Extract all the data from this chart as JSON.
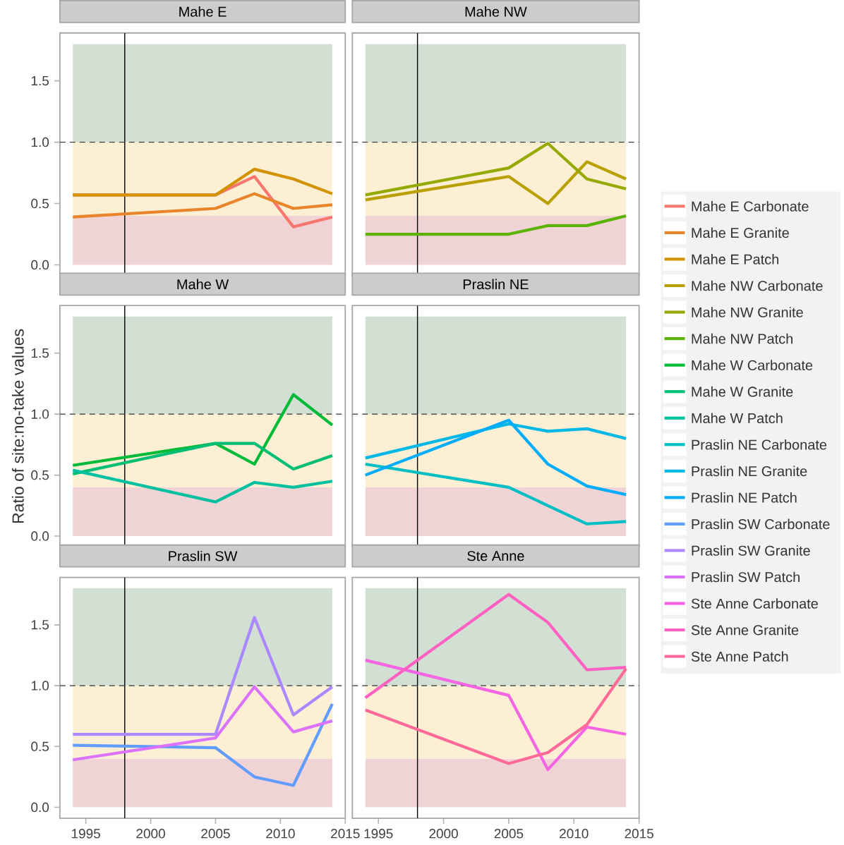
{
  "chart_data": [
    {
      "type": "line",
      "title": "Mahe E",
      "x": [
        1994,
        2005,
        2008,
        2011,
        2014
      ],
      "legend": "right",
      "tick_labels": "y",
      "xlim": [
        1993,
        2015
      ],
      "ylim": [
        -0.09,
        1.89
      ],
      "yticks": [
        {
          "value": 0,
          "label": "0.0"
        },
        {
          "value": 0.5,
          "label": "0.5"
        },
        {
          "value": 1,
          "label": "1.0"
        },
        {
          "value": 1.5,
          "label": "1.5"
        }
      ],
      "ref_lines": [
        {
          "axis": "x",
          "value": 1998,
          "color": "#000000",
          "line_style": "solid"
        },
        {
          "axis": "y",
          "value": 1,
          "color": "#333333",
          "line_style": "dashed"
        }
      ],
      "bands": [
        {
          "axis": "y",
          "from": 0,
          "to": 0.4,
          "color": "#EFD3D5"
        },
        {
          "axis": "y",
          "from": 0.4,
          "to": 1,
          "color": "#FDEFD4"
        },
        {
          "axis": "y",
          "from": 1,
          "to": 1.8,
          "color": "#D2E0D3"
        }
      ],
      "series": [
        {
          "name": "Mahe E Carbonate",
          "color": "#F8766D",
          "values": [
            0.57,
            0.57,
            0.72,
            0.31,
            0.39
          ]
        },
        {
          "name": "Mahe E Granite",
          "color": "#E8852A",
          "values": [
            0.39,
            0.46,
            0.58,
            0.46,
            0.49
          ]
        },
        {
          "name": "Mahe E Patch",
          "color": "#D39200",
          "values": [
            0.57,
            0.57,
            0.78,
            0.7,
            0.58
          ]
        }
      ]
    },
    {
      "type": "line",
      "title": "Mahe NW",
      "x": [
        1994,
        2005,
        2008,
        2011,
        2014
      ],
      "legend": "right",
      "tick_labels": false,
      "xlim": [
        1993,
        2015
      ],
      "ylim": [
        -0.09,
        1.89
      ],
      "ref_lines": [
        {
          "axis": "x",
          "value": 1998,
          "color": "#000000",
          "line_style": "solid"
        },
        {
          "axis": "y",
          "value": 1,
          "color": "#333333",
          "line_style": "dashed"
        }
      ],
      "bands": [
        {
          "axis": "y",
          "from": 0,
          "to": 0.4,
          "color": "#EFD3D5"
        },
        {
          "axis": "y",
          "from": 0.4,
          "to": 1,
          "color": "#FDEFD4"
        },
        {
          "axis": "y",
          "from": 1,
          "to": 1.8,
          "color": "#D2E0D3"
        }
      ],
      "series": [
        {
          "name": "Mahe NW Carbonate",
          "color": "#B8A000",
          "values": [
            0.53,
            0.72,
            0.5,
            0.84,
            0.7
          ]
        },
        {
          "name": "Mahe NW Granite",
          "color": "#95A900",
          "values": [
            0.57,
            0.79,
            0.99,
            0.7,
            0.62
          ]
        },
        {
          "name": "Mahe NW Patch",
          "color": "#5BB300",
          "values": [
            0.25,
            0.25,
            0.32,
            0.32,
            0.4
          ]
        }
      ]
    },
    {
      "type": "line",
      "title": "Mahe W",
      "ylabel": "Ratio of site:no-take values",
      "x": [
        1994,
        2005,
        2008,
        2011,
        2014
      ],
      "legend": "right",
      "tick_labels": "y",
      "xlim": [
        1993,
        2015
      ],
      "ylim": [
        -0.09,
        1.89
      ],
      "yticks": [
        {
          "value": 0,
          "label": "0.0"
        },
        {
          "value": 0.5,
          "label": "0.5"
        },
        {
          "value": 1,
          "label": "1.0"
        },
        {
          "value": 1.5,
          "label": "1.5"
        }
      ],
      "ref_lines": [
        {
          "axis": "x",
          "value": 1998,
          "color": "#000000",
          "line_style": "solid"
        },
        {
          "axis": "y",
          "value": 1,
          "color": "#333333",
          "line_style": "dashed"
        }
      ],
      "bands": [
        {
          "axis": "y",
          "from": 0,
          "to": 0.4,
          "color": "#EFD3D5"
        },
        {
          "axis": "y",
          "from": 0.4,
          "to": 1,
          "color": "#FDEFD4"
        },
        {
          "axis": "y",
          "from": 1,
          "to": 1.8,
          "color": "#D2E0D3"
        }
      ],
      "series": [
        {
          "name": "Mahe W Carbonate",
          "color": "#00BA38",
          "values": [
            0.58,
            0.76,
            0.59,
            1.16,
            0.91
          ]
        },
        {
          "name": "Mahe W Granite",
          "color": "#00BF74",
          "values": [
            0.51,
            0.76,
            0.76,
            0.55,
            0.66
          ]
        },
        {
          "name": "Mahe W Patch",
          "color": "#00C19F",
          "values": [
            0.54,
            0.28,
            0.44,
            0.4,
            0.45
          ]
        }
      ]
    },
    {
      "type": "line",
      "title": "Praslin NE",
      "x": [
        1994,
        2005,
        2008,
        2011,
        2014
      ],
      "legend": "right",
      "tick_labels": false,
      "xlim": [
        1993,
        2015
      ],
      "ylim": [
        -0.09,
        1.89
      ],
      "ref_lines": [
        {
          "axis": "x",
          "value": 1998,
          "color": "#000000",
          "line_style": "solid"
        },
        {
          "axis": "y",
          "value": 1,
          "color": "#333333",
          "line_style": "dashed"
        }
      ],
      "bands": [
        {
          "axis": "y",
          "from": 0,
          "to": 0.4,
          "color": "#EFD3D5"
        },
        {
          "axis": "y",
          "from": 0.4,
          "to": 1,
          "color": "#FDEFD4"
        },
        {
          "axis": "y",
          "from": 1,
          "to": 1.8,
          "color": "#D2E0D3"
        }
      ],
      "series": [
        {
          "name": "Praslin NE Carbonate",
          "color": "#00BFC4",
          "values": [
            0.59,
            0.4,
            0.25,
            0.1,
            0.12
          ]
        },
        {
          "name": "Praslin NE Granite",
          "color": "#00B8E5",
          "values": [
            0.64,
            0.92,
            0.86,
            0.88,
            0.8
          ]
        },
        {
          "name": "Praslin NE Patch",
          "color": "#00ACFC",
          "values": [
            0.5,
            0.95,
            0.59,
            0.41,
            0.34
          ]
        }
      ]
    },
    {
      "type": "line",
      "title": "Praslin SW",
      "x": [
        1994,
        2005,
        2008,
        2011,
        2014
      ],
      "legend": "right",
      "xlim": [
        1993,
        2015
      ],
      "ylim": [
        -0.09,
        1.89
      ],
      "xticks": [
        1995,
        2000,
        2005,
        2010,
        2015
      ],
      "yticks": [
        {
          "value": 0,
          "label": "0.0"
        },
        {
          "value": 0.5,
          "label": "0.5"
        },
        {
          "value": 1,
          "label": "1.0"
        },
        {
          "value": 1.5,
          "label": "1.5"
        }
      ],
      "ref_lines": [
        {
          "axis": "x",
          "value": 1998,
          "color": "#000000",
          "line_style": "solid"
        },
        {
          "axis": "y",
          "value": 1,
          "color": "#333333",
          "line_style": "dashed"
        }
      ],
      "bands": [
        {
          "axis": "y",
          "from": 0,
          "to": 0.4,
          "color": "#EFD3D5"
        },
        {
          "axis": "y",
          "from": 0.4,
          "to": 1,
          "color": "#FDEFD4"
        },
        {
          "axis": "y",
          "from": 1,
          "to": 1.8,
          "color": "#D2E0D3"
        }
      ],
      "series": [
        {
          "name": "Praslin SW Carbonate",
          "color": "#619CFF",
          "values": [
            0.51,
            0.49,
            0.25,
            0.18,
            0.85
          ]
        },
        {
          "name": "Praslin SW Granite",
          "color": "#AC88FF",
          "values": [
            0.6,
            0.6,
            1.56,
            0.76,
            0.99
          ]
        },
        {
          "name": "Praslin SW Patch",
          "color": "#DB72FB",
          "values": [
            0.39,
            0.57,
            0.99,
            0.62,
            0.71
          ]
        }
      ]
    },
    {
      "type": "line",
      "title": "Ste Anne",
      "x": [
        1994,
        2005,
        2008,
        2011,
        2014
      ],
      "legend": "right",
      "tick_labels": "x",
      "xlim": [
        1993,
        2015
      ],
      "ylim": [
        -0.09,
        1.89
      ],
      "xticks": [
        1995,
        2000,
        2005,
        2010,
        2015
      ],
      "ref_lines": [
        {
          "axis": "x",
          "value": 1998,
          "color": "#000000",
          "line_style": "solid"
        },
        {
          "axis": "y",
          "value": 1,
          "color": "#333333",
          "line_style": "dashed"
        }
      ],
      "bands": [
        {
          "axis": "y",
          "from": 0,
          "to": 0.4,
          "color": "#EFD3D5"
        },
        {
          "axis": "y",
          "from": 0.4,
          "to": 1,
          "color": "#FDEFD4"
        },
        {
          "axis": "y",
          "from": 1,
          "to": 1.8,
          "color": "#D2E0D3"
        }
      ],
      "series": [
        {
          "name": "Ste Anne Carbonate",
          "color": "#F564E3",
          "values": [
            1.21,
            0.92,
            0.31,
            0.66,
            0.6
          ]
        },
        {
          "name": "Ste Anne Granite",
          "color": "#FF61C3",
          "values": [
            0.9,
            1.75,
            1.52,
            1.13,
            1.15
          ]
        },
        {
          "name": "Ste Anne Patch",
          "color": "#FF6A98",
          "values": [
            0.8,
            0.36,
            0.45,
            0.68,
            1.14
          ]
        }
      ]
    }
  ]
}
